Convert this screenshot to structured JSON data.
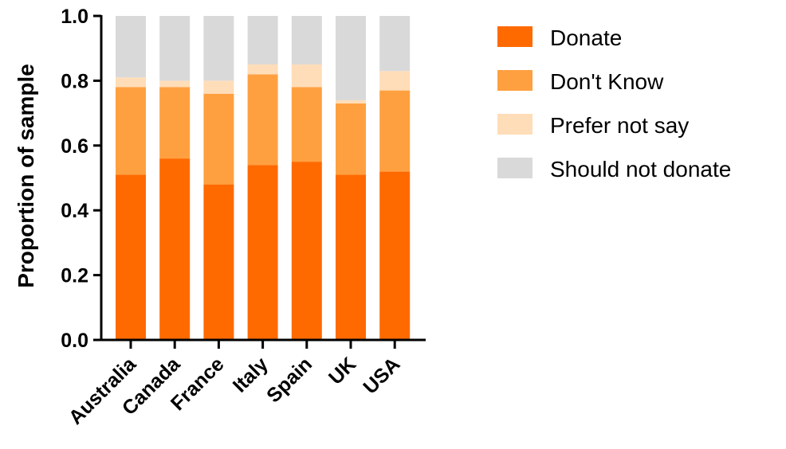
{
  "chart_data": {
    "type": "bar",
    "stacked": true,
    "categories": [
      "Australia",
      "Canada",
      "France",
      "Italy",
      "Spain",
      "UK",
      "USA"
    ],
    "series": [
      {
        "name": "Donate",
        "color": "#FF6A00",
        "values": [
          0.51,
          0.56,
          0.48,
          0.54,
          0.55,
          0.51,
          0.52
        ]
      },
      {
        "name": "Don't Know",
        "color": "#FFA040",
        "values": [
          0.27,
          0.22,
          0.28,
          0.28,
          0.23,
          0.22,
          0.25
        ]
      },
      {
        "name": "Prefer not say",
        "color": "#FFDDB8",
        "values": [
          0.03,
          0.02,
          0.04,
          0.03,
          0.07,
          0.01,
          0.06
        ]
      },
      {
        "name": "Should not donate",
        "color": "#D9D9D9",
        "values": [
          0.19,
          0.2,
          0.2,
          0.15,
          0.15,
          0.26,
          0.17
        ]
      }
    ],
    "xlabel": "",
    "ylabel": "Proportion of sample",
    "ylim": [
      0,
      1.0
    ],
    "yticks": [
      "0.0",
      "0.2",
      "0.4",
      "0.6",
      "0.8",
      "1.0"
    ],
    "ytick_values": [
      0,
      0.2,
      0.4,
      0.6,
      0.8,
      1.0
    ],
    "legend_position": "right",
    "grid": false
  }
}
